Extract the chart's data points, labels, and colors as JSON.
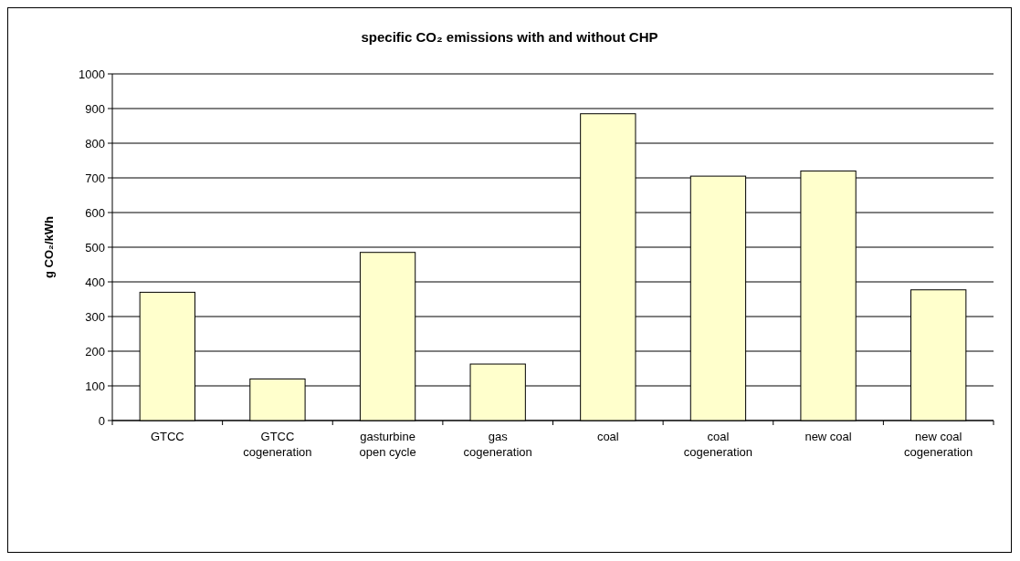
{
  "chart_data": {
    "type": "bar",
    "title": "specific CO₂ emissions with and without CHP",
    "ylabel": "g CO₂/kWh",
    "categories": [
      "GTCC",
      "GTCC cogeneration",
      "gasturbine open cycle",
      "gas cogeneration",
      "coal",
      "coal cogeneration",
      "new coal",
      "new coal cogeneration"
    ],
    "values": [
      370,
      120,
      485,
      163,
      885,
      705,
      720,
      377
    ],
    "color": "#ffffcc",
    "ylim": [
      0,
      1000
    ],
    "yticks": [
      0,
      100,
      200,
      300,
      400,
      500,
      600,
      700,
      800,
      900,
      1000
    ],
    "grid": "y"
  }
}
